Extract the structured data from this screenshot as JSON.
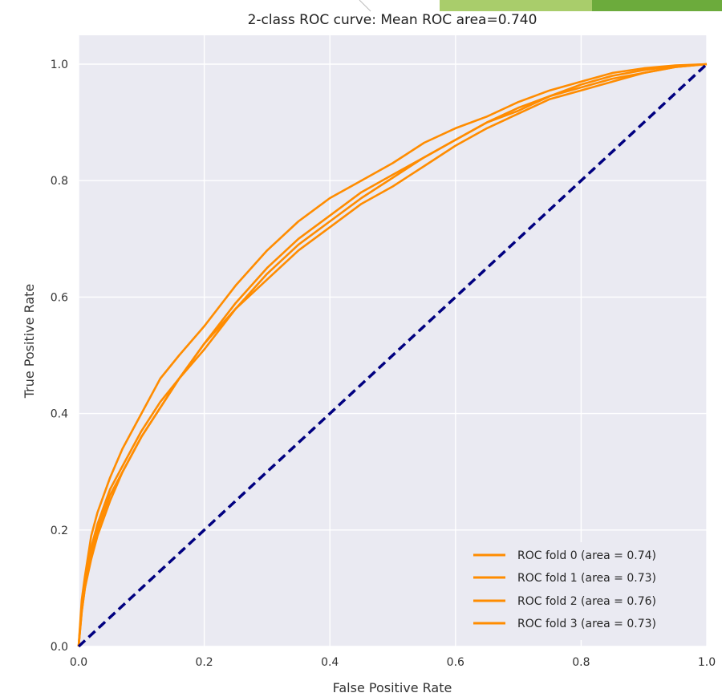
{
  "chart_data": {
    "type": "line",
    "title": "2-class ROC curve: Mean ROC area=0.740",
    "xlabel": "False Positive Rate",
    "ylabel": "True Positive Rate",
    "xlim": [
      0.0,
      1.0
    ],
    "ylim": [
      0.0,
      1.0
    ],
    "x_ticks": [
      "0.0",
      "0.2",
      "0.4",
      "0.6",
      "0.8",
      "1.0"
    ],
    "y_ticks": [
      "0.0",
      "0.2",
      "0.4",
      "0.6",
      "0.8",
      "1.0"
    ],
    "grid": true,
    "legend_position": "bottom-right",
    "colors": {
      "series": "#ff8c00",
      "diagonal": "#000080",
      "background": "#eaeaf2",
      "grid": "#ffffff"
    },
    "series": [
      {
        "name": "ROC fold 0 (area = 0.74)",
        "x": [
          0,
          0.005,
          0.01,
          0.02,
          0.03,
          0.05,
          0.07,
          0.1,
          0.13,
          0.16,
          0.2,
          0.25,
          0.3,
          0.35,
          0.4,
          0.45,
          0.5,
          0.55,
          0.6,
          0.65,
          0.7,
          0.75,
          0.8,
          0.85,
          0.9,
          0.95,
          1.0
        ],
        "y": [
          0,
          0.07,
          0.11,
          0.17,
          0.21,
          0.27,
          0.31,
          0.37,
          0.42,
          0.46,
          0.52,
          0.59,
          0.65,
          0.7,
          0.74,
          0.78,
          0.81,
          0.84,
          0.87,
          0.9,
          0.92,
          0.945,
          0.965,
          0.98,
          0.99,
          0.997,
          1.0
        ]
      },
      {
        "name": "ROC fold 1 (area = 0.73)",
        "x": [
          0,
          0.005,
          0.01,
          0.02,
          0.03,
          0.05,
          0.07,
          0.1,
          0.13,
          0.16,
          0.2,
          0.25,
          0.3,
          0.35,
          0.4,
          0.45,
          0.5,
          0.55,
          0.6,
          0.65,
          0.7,
          0.75,
          0.8,
          0.85,
          0.9,
          0.95,
          1.0
        ],
        "y": [
          0,
          0.06,
          0.1,
          0.16,
          0.2,
          0.26,
          0.3,
          0.36,
          0.41,
          0.46,
          0.51,
          0.58,
          0.64,
          0.69,
          0.73,
          0.77,
          0.805,
          0.84,
          0.87,
          0.9,
          0.925,
          0.945,
          0.96,
          0.975,
          0.985,
          0.995,
          1.0
        ]
      },
      {
        "name": "ROC fold 2 (area = 0.76)",
        "x": [
          0,
          0.005,
          0.01,
          0.02,
          0.03,
          0.05,
          0.07,
          0.1,
          0.13,
          0.16,
          0.2,
          0.25,
          0.3,
          0.35,
          0.4,
          0.45,
          0.5,
          0.55,
          0.6,
          0.65,
          0.7,
          0.75,
          0.8,
          0.85,
          0.9,
          0.95,
          1.0
        ],
        "y": [
          0,
          0.08,
          0.12,
          0.19,
          0.23,
          0.29,
          0.34,
          0.4,
          0.46,
          0.5,
          0.55,
          0.62,
          0.68,
          0.73,
          0.77,
          0.8,
          0.83,
          0.865,
          0.89,
          0.91,
          0.935,
          0.955,
          0.97,
          0.985,
          0.993,
          0.998,
          1.0
        ]
      },
      {
        "name": "ROC fold 3 (area = 0.73)",
        "x": [
          0,
          0.005,
          0.01,
          0.02,
          0.03,
          0.05,
          0.07,
          0.1,
          0.13,
          0.16,
          0.2,
          0.25,
          0.3,
          0.35,
          0.4,
          0.45,
          0.5,
          0.55,
          0.6,
          0.65,
          0.7,
          0.75,
          0.8,
          0.85,
          0.9,
          0.95,
          1.0
        ],
        "y": [
          0,
          0.06,
          0.1,
          0.15,
          0.19,
          0.25,
          0.3,
          0.36,
          0.41,
          0.46,
          0.52,
          0.58,
          0.63,
          0.68,
          0.72,
          0.76,
          0.79,
          0.825,
          0.86,
          0.89,
          0.915,
          0.94,
          0.955,
          0.97,
          0.985,
          0.995,
          1.0
        ]
      }
    ],
    "reference_line": {
      "x": [
        0,
        1
      ],
      "y": [
        0,
        1
      ],
      "style": "dashed"
    }
  }
}
